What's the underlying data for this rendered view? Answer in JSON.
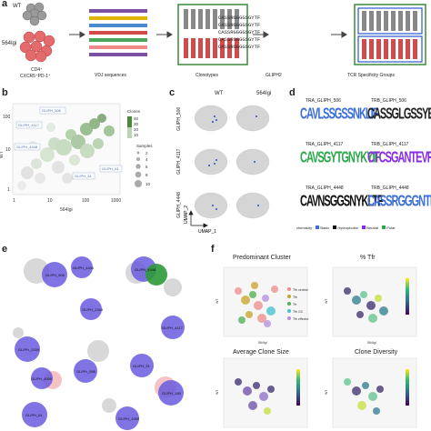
{
  "panel_labels": {
    "a": "a",
    "b": "b",
    "c": "c",
    "d": "d",
    "e": "e",
    "f": "f"
  },
  "panel_a": {
    "wt_label": "WT",
    "mutant_label": "564Igi",
    "cell_label_line1": "CD4⁺",
    "cell_label_line2": "CXCR5⁺PD-1⁺",
    "step_vdj": "VDJ sequences",
    "step_clonotypes": "Clonotypes",
    "step_gliph": "GLIPH2",
    "step_groups": "TCR Specificity Groups",
    "sequences": [
      "CASSRGGGGSGYTF",
      "CASSRGGGGSGYTF",
      "CASSRGGGGSGYTF",
      "CASSRGGGGSGYTF",
      "CASSRGGGGSGYTF"
    ]
  },
  "panel_b": {
    "xlabel": "564Igi",
    "ylabel": "WT",
    "x_ticks": [
      "1",
      "10",
      "100",
      "1000"
    ],
    "y_ticks": [
      "100",
      "10",
      "1"
    ],
    "legend_clones_title": "Clones",
    "legend_clones_values": [
      "40",
      "30",
      "20",
      "10"
    ],
    "legend_samples_title": "Samples",
    "legend_samples_values": [
      "2",
      "4",
      "6",
      "8",
      "10"
    ],
    "annotations": [
      "GLIPH_506",
      "GLIPH_4117",
      "GLIPH_4448",
      "GLIPH_81",
      "GLIPH_31",
      "GLIPH_180",
      "GLIPH_2283",
      "GLIPH_1000"
    ]
  },
  "panel_c": {
    "col_wt": "WT",
    "col_mut": "564Igi",
    "rows": [
      "GLIPH_506",
      "GLIPH_4117",
      "GLIPH_4448"
    ],
    "axis_x": "UMAP_1",
    "axis_y": "UMAP_2"
  },
  "panel_d": {
    "titles": [
      "TRA_GLIPH_506",
      "TRB_GLIPH_506",
      "TRA_GLIPH_4117",
      "TRB_GLIPH_4117",
      "TRA_GLIPH_4448",
      "TRB_GLIPH_4448"
    ],
    "logos": [
      "CAVLSSGSSNKLIF",
      "CASSGLGSSYEQYF",
      "CAVSGYTGNYKYIF",
      "CTCSGANTEVFF",
      "CAVNSGGSNYKLTF",
      "CASSRGGGNTLYF"
    ],
    "ylabel": "Probability",
    "legend_title": "chemistry",
    "legend_items": [
      "Basic",
      "Hydrophobic",
      "Neutral",
      "Polar"
    ],
    "legend_colors": [
      "#3b6fd8",
      "#111111",
      "#8a2be2",
      "#2aa84a"
    ]
  },
  "panel_e": {
    "nodes": [
      "GLIPH_506",
      "GLIPH_4444",
      "GLIPH_2283",
      "GLIPH_4117",
      "GLIPH_2000",
      "GLIPH_6000",
      "GLIPH_596",
      "GLIPH_31",
      "GLIPH_180",
      "GLIPH_4448",
      "GLIPH_81",
      "GLIPH_1000"
    ]
  },
  "panel_f": {
    "titles": [
      "Predominant Cluster",
      "% Tfr",
      "Average Clone Size",
      "Clone Diversity"
    ],
    "xlabel": "564Igi",
    "ylabel": "WT",
    "legend_cluster": [
      "Tfh central",
      "Tfh",
      "Tfr",
      "Tfh GC",
      "Tfh effector"
    ],
    "legend_cluster_colors": [
      "#f08a8a",
      "#c9a227",
      "#4caf50",
      "#3ec1d3",
      "#b38de0"
    ]
  }
}
